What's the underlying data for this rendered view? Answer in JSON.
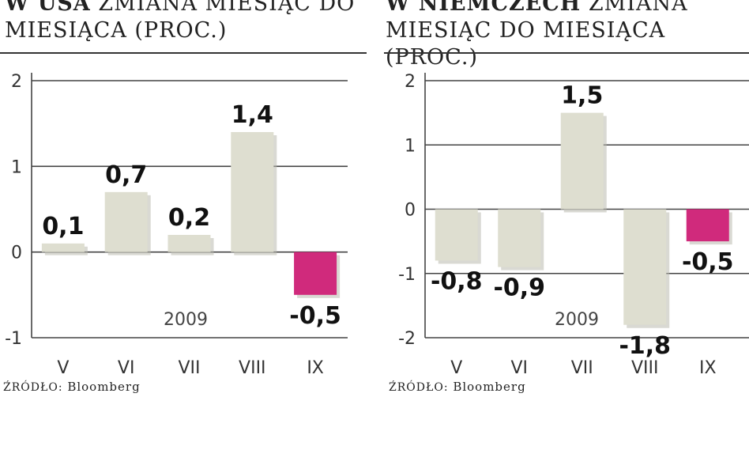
{
  "colors": {
    "bar": "#deded0",
    "highlight": "#d02a7c",
    "gridline": "#444444",
    "axis": "#444444",
    "text": "#1a1a1a"
  },
  "panels": [
    {
      "title_bold": "W USA",
      "title_rest": "zmiana miesiąc do miesiąca (proc.)",
      "source_label": "Źródło:",
      "source_name": "Bloomberg"
    },
    {
      "title_bold": "W Niemczech",
      "title_rest": "zmiana miesiąc do miesiąca (proc.)",
      "source_label": "Źródło:",
      "source_name": "Bloomberg"
    }
  ],
  "chart_data": [
    {
      "type": "bar",
      "title": "W USA zmiana miesiąc do miesiąca (proc.)",
      "categories": [
        "V",
        "VI",
        "VII",
        "VIII",
        "IX"
      ],
      "values": [
        0.1,
        0.7,
        0.2,
        1.4,
        -0.5
      ],
      "value_labels": [
        "0,1",
        "0,7",
        "0,2",
        "1,4",
        "-0,5"
      ],
      "highlight_index": 4,
      "annotation": "2009",
      "ylim": [
        -1,
        2
      ],
      "yticks": [
        2,
        1,
        0,
        -1
      ],
      "ytick_labels": [
        "2",
        "1",
        "0",
        "-1"
      ],
      "grid": true,
      "xlabel": "",
      "ylabel": ""
    },
    {
      "type": "bar",
      "title": "W Niemczech zmiana miesiąc do miesiąca (proc.)",
      "categories": [
        "V",
        "VI",
        "VII",
        "VIII",
        "IX"
      ],
      "values": [
        -0.8,
        -0.9,
        1.5,
        -1.8,
        -0.5
      ],
      "value_labels": [
        "-0,8",
        "-0,9",
        "1,5",
        "-1,8",
        "-0,5"
      ],
      "highlight_index": 4,
      "annotation": "2009",
      "ylim": [
        -2,
        2
      ],
      "yticks": [
        2,
        1,
        0,
        -1,
        -2
      ],
      "ytick_labels": [
        "2",
        "1",
        "0",
        "-1",
        "-2"
      ],
      "grid": true,
      "xlabel": "",
      "ylabel": ""
    }
  ]
}
